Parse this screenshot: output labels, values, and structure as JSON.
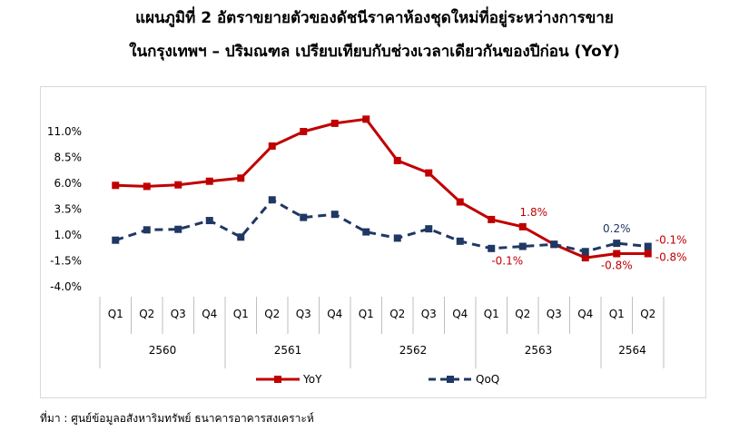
{
  "title_line1": "แผนภูมิที่ 2 อัตราขยายตัวของดัชนีราคาห้องชุดใหม่ที่อยู่ระหว่างการขาย",
  "title_line2": "ในกรุงเทพฯ – ปริมณฑล เปรียบเทียบกับช่วงเวลาเดียวกันของปีก่อน (YoY)",
  "source": "ที่มา : ศูนย์ข้อมูลอสังหาริมทรัพย์ ธนาคารอาคารสงเคราะห์",
  "chart_data": {
    "type": "line",
    "categories": [
      "Q1",
      "Q2",
      "Q3",
      "Q4",
      "Q1",
      "Q2",
      "Q3",
      "Q4",
      "Q1",
      "Q2",
      "Q3",
      "Q4",
      "Q1",
      "Q2",
      "Q3",
      "Q4",
      "Q1",
      "Q2"
    ],
    "year_groups": [
      {
        "label": "2560",
        "count": 4
      },
      {
        "label": "2561",
        "count": 4
      },
      {
        "label": "2562",
        "count": 4
      },
      {
        "label": "2563",
        "count": 4
      },
      {
        "label": "2564",
        "count": 2
      }
    ],
    "y_ticks": [
      "11.0%",
      "8.5%",
      "6.0%",
      "3.5%",
      "1.0%",
      "-1.5%",
      "-4.0%"
    ],
    "ylim": [
      -4.0,
      11.0
    ],
    "series": [
      {
        "name": "YoY",
        "color": "#c00000",
        "style": "solid",
        "values": [
          5.8,
          5.7,
          5.85,
          6.2,
          6.5,
          9.6,
          11.0,
          11.8,
          12.2,
          8.2,
          7.0,
          4.2,
          2.5,
          1.8,
          0.1,
          -1.2,
          -0.8,
          -0.8
        ]
      },
      {
        "name": "QoQ",
        "color": "#1f3864",
        "style": "dashed",
        "values": [
          0.5,
          1.5,
          1.55,
          2.4,
          0.8,
          4.4,
          2.7,
          3.0,
          1.3,
          0.7,
          1.6,
          0.4,
          -0.3,
          -0.1,
          0.1,
          -0.6,
          0.2,
          -0.1
        ]
      }
    ],
    "annotations": [
      {
        "text": "1.8%",
        "color": "#c00000"
      },
      {
        "text": "-0.1%",
        "color": "#c00000"
      },
      {
        "text": "0.2%",
        "color": "#1f3864"
      },
      {
        "text": "-0.8%",
        "color": "#c00000"
      },
      {
        "text": "-0.1%",
        "color": "#c00000"
      },
      {
        "text": "-0.8%",
        "color": "#c00000"
      }
    ],
    "legend_position": "bottom",
    "grid": false
  }
}
